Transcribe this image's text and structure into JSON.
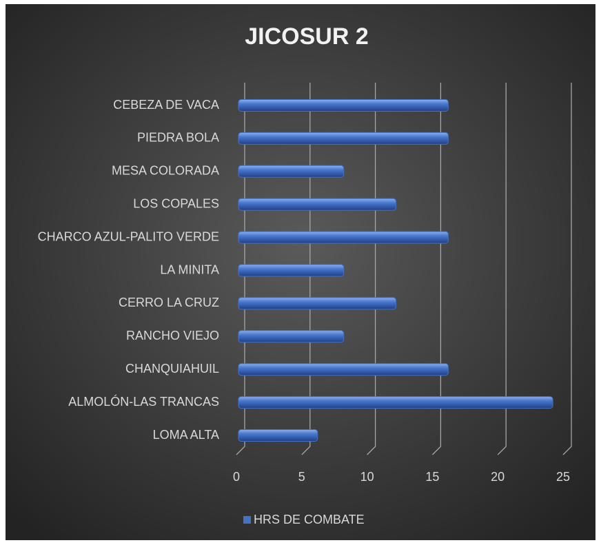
{
  "chart_data": {
    "type": "bar",
    "orientation": "horizontal",
    "title": "JICOSUR 2",
    "categories": [
      "CEBEZA DE VACA",
      "PIEDRA BOLA",
      "MESA COLORADA",
      "LOS COPALES",
      "CHARCO AZUL-PALITO VERDE",
      "LA MINITA",
      "CERRO LA CRUZ",
      "RANCHO VIEJO",
      "CHANQUIAHUIL",
      "ALMOLÓN-LAS TRANCAS",
      "LOMA ALTA"
    ],
    "series": [
      {
        "name": "HRS DE COMBATE",
        "color": "#4472c4",
        "values": [
          16,
          16,
          8,
          12,
          16,
          8,
          12,
          8,
          16,
          24,
          6
        ]
      }
    ],
    "xlim": [
      0,
      25
    ],
    "xticks": [
      0,
      5,
      10,
      15,
      20,
      25
    ],
    "grid": true,
    "legend": "bottom"
  }
}
